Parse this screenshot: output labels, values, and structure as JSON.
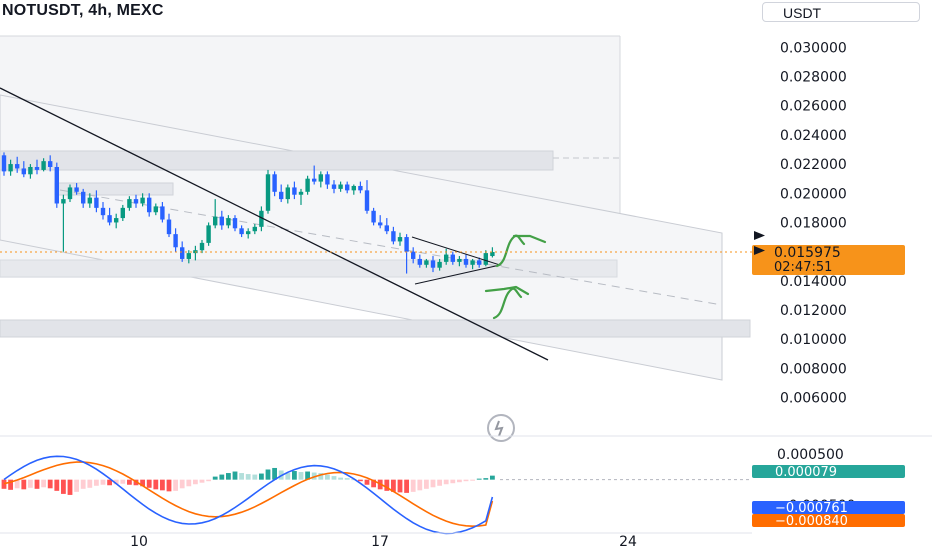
{
  "header": {
    "symbol_title": "NOTUSDT, 4h, MEXC",
    "currency_label": "USDT"
  },
  "chart_data": [
    {
      "type": "candlestick",
      "name": "price",
      "price_axis": {
        "ticks": [
          "0.030000",
          "0.028000",
          "0.026000",
          "0.024000",
          "0.022000",
          "0.020000",
          "0.018000",
          "0.016000",
          "0.014000",
          "0.012000",
          "0.010000",
          "0.008000",
          "0.006000"
        ],
        "ylim": [
          0.0057,
          0.0305
        ]
      },
      "time_axis": {
        "ticks": [
          "10",
          "17",
          "24"
        ]
      },
      "current_price": "0.015975",
      "countdown": "02:47:51",
      "ohlc": [
        [
          0.0226,
          0.0228,
          0.0212,
          0.0215
        ],
        [
          0.0215,
          0.0223,
          0.0212,
          0.022
        ],
        [
          0.022,
          0.0225,
          0.0214,
          0.0217
        ],
        [
          0.0217,
          0.0222,
          0.0211,
          0.0213
        ],
        [
          0.0213,
          0.022,
          0.021,
          0.0218
        ],
        [
          0.0218,
          0.0223,
          0.0213,
          0.0216
        ],
        [
          0.0216,
          0.0224,
          0.0215,
          0.0222
        ],
        [
          0.0222,
          0.0226,
          0.0215,
          0.0218
        ],
        [
          0.0218,
          0.0221,
          0.019,
          0.0193
        ],
        [
          0.0193,
          0.0199,
          0.016,
          0.0196
        ],
        [
          0.0196,
          0.0206,
          0.0194,
          0.0204
        ],
        [
          0.0204,
          0.0207,
          0.0199,
          0.0201
        ],
        [
          0.0201,
          0.0203,
          0.019,
          0.0193
        ],
        [
          0.0193,
          0.02,
          0.019,
          0.0197
        ],
        [
          0.0197,
          0.0202,
          0.0187,
          0.019
        ],
        [
          0.019,
          0.0194,
          0.0182,
          0.0185
        ],
        [
          0.0185,
          0.019,
          0.0178,
          0.018
        ],
        [
          0.018,
          0.0186,
          0.0176,
          0.0183
        ],
        [
          0.0183,
          0.0192,
          0.0181,
          0.019
        ],
        [
          0.019,
          0.0198,
          0.0188,
          0.0196
        ],
        [
          0.0196,
          0.0199,
          0.019,
          0.0193
        ],
        [
          0.0193,
          0.02,
          0.0191,
          0.0197
        ],
        [
          0.0197,
          0.02,
          0.0184,
          0.0187
        ],
        [
          0.0187,
          0.0193,
          0.0185,
          0.0191
        ],
        [
          0.0191,
          0.0194,
          0.018,
          0.0182
        ],
        [
          0.0182,
          0.0186,
          0.017,
          0.0172
        ],
        [
          0.0172,
          0.0176,
          0.016,
          0.0163
        ],
        [
          0.0163,
          0.0167,
          0.0153,
          0.0155
        ],
        [
          0.0155,
          0.0161,
          0.0152,
          0.0159
        ],
        [
          0.0159,
          0.0164,
          0.0154,
          0.0161
        ],
        [
          0.0161,
          0.0168,
          0.0159,
          0.0166
        ],
        [
          0.0166,
          0.018,
          0.0164,
          0.0178
        ],
        [
          0.0178,
          0.0196,
          0.0176,
          0.0184
        ],
        [
          0.0184,
          0.0188,
          0.0175,
          0.0178
        ],
        [
          0.0178,
          0.0185,
          0.0176,
          0.0183
        ],
        [
          0.0183,
          0.0185,
          0.0174,
          0.0176
        ],
        [
          0.0176,
          0.0178,
          0.017,
          0.0172
        ],
        [
          0.0172,
          0.0176,
          0.0169,
          0.0174
        ],
        [
          0.0174,
          0.0179,
          0.0172,
          0.0177
        ],
        [
          0.0177,
          0.0191,
          0.0174,
          0.0188
        ],
        [
          0.0188,
          0.0216,
          0.0186,
          0.0213
        ],
        [
          0.0213,
          0.0215,
          0.0198,
          0.0201
        ],
        [
          0.0201,
          0.0206,
          0.0194,
          0.0196
        ],
        [
          0.0196,
          0.0206,
          0.0193,
          0.0204
        ],
        [
          0.0204,
          0.0208,
          0.0196,
          0.0199
        ],
        [
          0.0199,
          0.0203,
          0.0192,
          0.0201
        ],
        [
          0.0201,
          0.0212,
          0.0199,
          0.021
        ],
        [
          0.021,
          0.0219,
          0.0206,
          0.0208
        ],
        [
          0.0208,
          0.0215,
          0.0204,
          0.0213
        ],
        [
          0.0213,
          0.0215,
          0.0203,
          0.0206
        ],
        [
          0.0206,
          0.0209,
          0.02,
          0.0203
        ],
        [
          0.0203,
          0.0208,
          0.0201,
          0.0206
        ],
        [
          0.0206,
          0.0208,
          0.02,
          0.0202
        ],
        [
          0.0202,
          0.0206,
          0.0199,
          0.0205
        ],
        [
          0.0205,
          0.0208,
          0.02,
          0.0202
        ],
        [
          0.0202,
          0.0209,
          0.0186,
          0.0188
        ],
        [
          0.0188,
          0.019,
          0.0178,
          0.018
        ],
        [
          0.018,
          0.0185,
          0.0176,
          0.0178
        ],
        [
          0.0178,
          0.0183,
          0.0172,
          0.0174
        ],
        [
          0.0174,
          0.0177,
          0.0165,
          0.0167
        ],
        [
          0.0167,
          0.0173,
          0.0164,
          0.017
        ],
        [
          0.017,
          0.0172,
          0.0145,
          0.016
        ],
        [
          0.016,
          0.0163,
          0.0152,
          0.0155
        ],
        [
          0.0155,
          0.0158,
          0.0149,
          0.0151
        ],
        [
          0.0151,
          0.0155,
          0.0149,
          0.0154
        ],
        [
          0.0154,
          0.0157,
          0.0146,
          0.0149
        ],
        [
          0.0149,
          0.0155,
          0.0147,
          0.0153
        ],
        [
          0.0153,
          0.0162,
          0.0151,
          0.0158
        ],
        [
          0.0158,
          0.016,
          0.0151,
          0.0153
        ],
        [
          0.0153,
          0.0157,
          0.015,
          0.0155
        ],
        [
          0.0155,
          0.0158,
          0.0149,
          0.0151
        ],
        [
          0.0151,
          0.0155,
          0.0148,
          0.0154
        ],
        [
          0.0154,
          0.0156,
          0.0149,
          0.0151
        ],
        [
          0.0151,
          0.0161,
          0.015,
          0.0159
        ],
        [
          0.0157,
          0.0163,
          0.0156,
          0.015975
        ]
      ],
      "colors": {
        "up": "#089981",
        "down": "#2962ff",
        "current_price_label": "#f7931a",
        "drawings": "#131722",
        "arrows": "#43a047"
      }
    },
    {
      "type": "macd",
      "name": "macd",
      "axis_ticks": [
        "0.000500",
        "-0.000500"
      ],
      "ylim": [
        -0.00099,
        0.00078
      ],
      "values": {
        "histogram": "0.000079",
        "macd": "-0.000761",
        "signal": "-0.000840"
      },
      "histogram": [
        -0.00018,
        -0.0002,
        -0.00017,
        -0.00019,
        -0.00016,
        -0.00018,
        -0.00015,
        -0.00017,
        -0.00022,
        -0.00028,
        -0.0003,
        -0.00024,
        -0.00018,
        -0.00016,
        -0.00012,
        -0.0001,
        -0.00011,
        -9e-05,
        -8e-05,
        -0.0001,
        -0.00011,
        -0.00013,
        -0.00016,
        -0.00019,
        -0.00021,
        -0.00023,
        -0.00022,
        -0.00017,
        -0.00013,
        -9e-05,
        -6e-05,
        -3e-05,
        6e-05,
        0.0001,
        0.00013,
        0.00016,
        0.00013,
        0.00011,
        0.0001,
        0.00012,
        0.0002,
        0.00023,
        0.00018,
        0.00013,
        0.00017,
        0.00015,
        0.00016,
        0.00014,
        0.00013,
        0.0001,
        7e-05,
        4e-05,
        3e-05,
        1e-05,
        -3e-05,
        -0.0001,
        -0.00015,
        -0.00019,
        -0.00022,
        -0.00024,
        -0.00025,
        -0.00026,
        -0.00024,
        -0.00021,
        -0.00018,
        -0.00015,
        -0.00012,
        -9e-05,
        -7e-05,
        -5e-05,
        -3e-05,
        -2e-05,
        2e-05,
        3e-05,
        7.9e-05
      ],
      "colors": {
        "macd_line": "#2962ff",
        "signal_line": "#ff6d00",
        "hist_pos_strong": "#26a69a",
        "hist_pos_weak": "#b2dfdb",
        "hist_neg_strong": "#ff5252",
        "hist_neg_weak": "#ffcdd2"
      }
    }
  ]
}
